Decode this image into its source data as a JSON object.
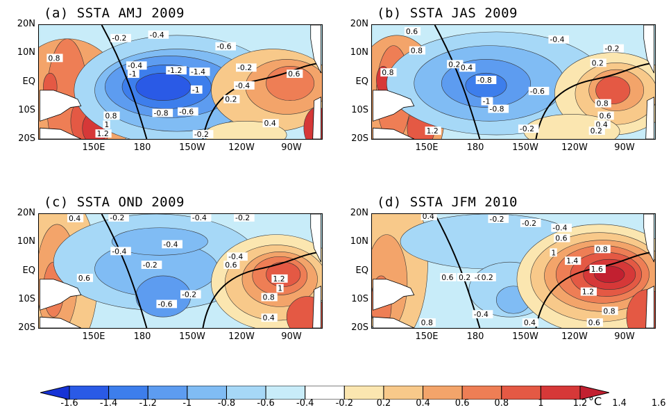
{
  "panels": [
    {
      "id": "a",
      "title": "(a) SSTA AMJ 2009",
      "labels": [
        {
          "t": "-0.4"
        },
        {
          "t": "-0.2"
        },
        {
          "t": "-0.6"
        },
        {
          "t": "0.8"
        },
        {
          "t": "-0.4"
        },
        {
          "t": "-1.2"
        },
        {
          "t": "-1.4"
        },
        {
          "t": "-1"
        },
        {
          "t": "-0.2"
        },
        {
          "t": "0.6"
        },
        {
          "t": "-0.4"
        },
        {
          "t": "-1"
        },
        {
          "t": "0.2"
        },
        {
          "t": "-0.8"
        },
        {
          "t": "-0.6"
        },
        {
          "t": "0.8"
        },
        {
          "t": "1"
        },
        {
          "t": "0.4"
        },
        {
          "t": "1.2"
        },
        {
          "t": "-0.2"
        }
      ]
    },
    {
      "id": "b",
      "title": "(b) SSTA JAS 2009",
      "labels": [
        {
          "t": "0.6"
        },
        {
          "t": "0.8"
        },
        {
          "t": "-0.4"
        },
        {
          "t": "-0.2"
        },
        {
          "t": "0.2"
        },
        {
          "t": "0.4"
        },
        {
          "t": "0.8"
        },
        {
          "t": "-0.8"
        },
        {
          "t": "-0.6"
        },
        {
          "t": "0.2"
        },
        {
          "t": "-1"
        },
        {
          "t": "-0.8"
        },
        {
          "t": "0.8"
        },
        {
          "t": "0.6"
        },
        {
          "t": "0.4"
        },
        {
          "t": "-0.2"
        },
        {
          "t": "0.2"
        },
        {
          "t": "1.2"
        }
      ]
    },
    {
      "id": "c",
      "title": "(c) SSTA OND 2009",
      "labels": [
        {
          "t": "0.4"
        },
        {
          "t": "-0.2"
        },
        {
          "t": "-0.4"
        },
        {
          "t": "-0.2"
        },
        {
          "t": "-0.4"
        },
        {
          "t": "-0.4"
        },
        {
          "t": "-0.2"
        },
        {
          "t": "-0.4"
        },
        {
          "t": "0.6"
        },
        {
          "t": "1.2"
        },
        {
          "t": "1"
        },
        {
          "t": "0.6"
        },
        {
          "t": "-0.6"
        },
        {
          "t": "-0.2"
        },
        {
          "t": "0.8"
        },
        {
          "t": "0.4"
        }
      ]
    },
    {
      "id": "d",
      "title": "(d) SSTA JFM 2010",
      "labels": [
        {
          "t": "0.4"
        },
        {
          "t": "-0.2"
        },
        {
          "t": "-0.2"
        },
        {
          "t": "-0.4"
        },
        {
          "t": "0.6"
        },
        {
          "t": "0.8"
        },
        {
          "t": "1"
        },
        {
          "t": "1.4"
        },
        {
          "t": "1.6"
        },
        {
          "t": "0.6"
        },
        {
          "t": "0.2"
        },
        {
          "t": "-0.2"
        },
        {
          "t": "0.2"
        },
        {
          "t": "1.2"
        },
        {
          "t": "-0.4"
        },
        {
          "t": "0.8"
        },
        {
          "t": "0.4"
        },
        {
          "t": "0.6"
        },
        {
          "t": "0.8"
        }
      ]
    }
  ],
  "lat_labels": [
    "20N",
    "10N",
    "EQ",
    "10S",
    "20S"
  ],
  "lon_labels": [
    "150E",
    "180",
    "150W",
    "120W",
    "90W"
  ],
  "colorbar": {
    "unit": "°C",
    "ticks": [
      "-1.6",
      "-1.4",
      "-1.2",
      "-1",
      "-0.8",
      "-0.6",
      "-0.4",
      "-0.2",
      "0.2",
      "0.4",
      "0.6",
      "0.8",
      "1",
      "1.2",
      "1.4",
      "1.6"
    ],
    "colors": [
      "#1633d6",
      "#2a5ae6",
      "#3d7eec",
      "#5d9cf0",
      "#80bcf4",
      "#a6d8f7",
      "#c8ecf9",
      "#ffffff",
      "#fbe6b0",
      "#f8c98a",
      "#f3a46a",
      "#ee7e55",
      "#e45944",
      "#d63838",
      "#c22030"
    ]
  },
  "colors": {
    "warm_high": "#d63838",
    "cold_low": "#2a5ae6",
    "land": "#ffffff",
    "zero_line": "#000000"
  }
}
